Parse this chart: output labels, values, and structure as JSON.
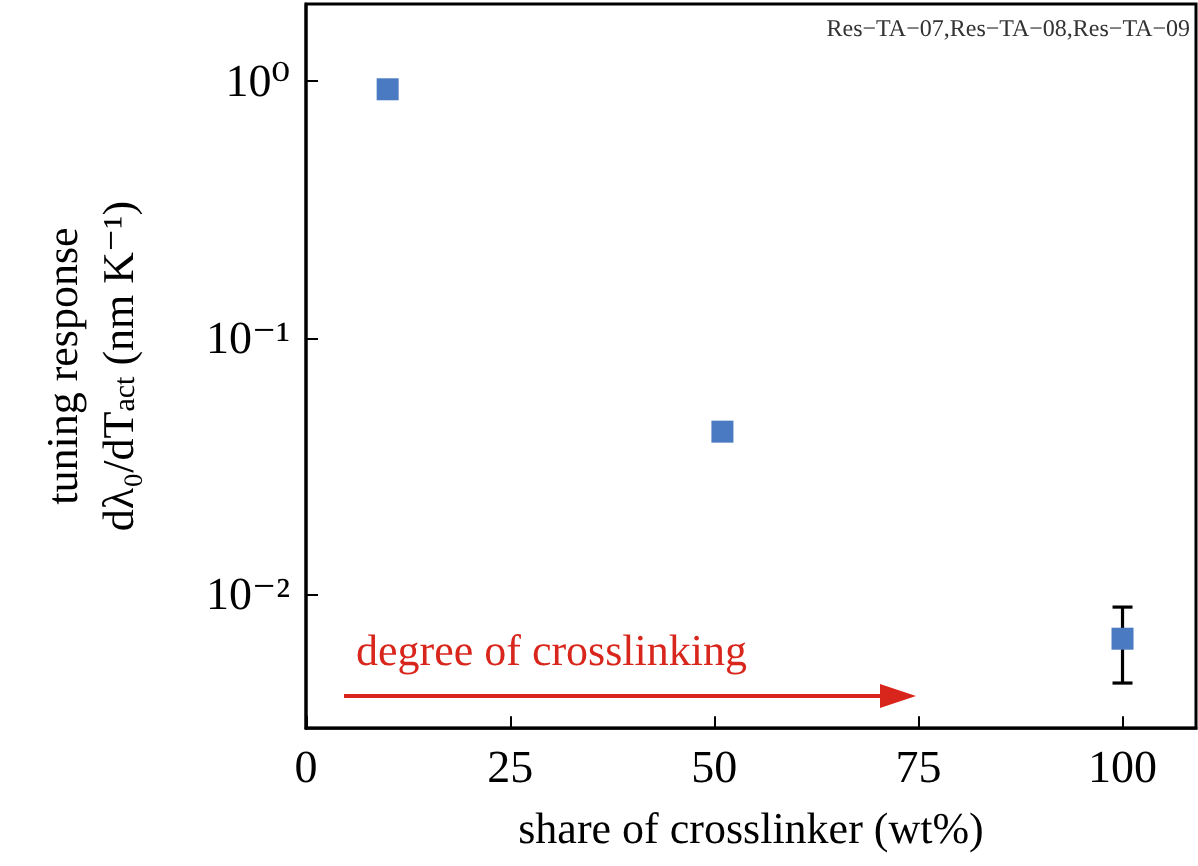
{
  "chart_data": {
    "type": "scatter",
    "xlabel": "share of crosslinker (wt%)",
    "ylabel": "tuning response\ndλ₀/dT$_{act}$ (nm K⁻¹)",
    "x": [
      10,
      51,
      100
    ],
    "series": [
      {
        "color": "#4a7ac2",
        "values": [
          0.93,
          0.043,
          0.0067
        ],
        "errors": [
          null,
          null,
          [
            0.0045,
            0.0089
          ]
        ]
      }
    ],
    "xlim": [
      0,
      109
    ],
    "xticks": [
      0,
      25,
      50,
      75,
      100
    ],
    "ylim": [
      0.003,
      2
    ],
    "yticks": [
      {
        "value": 1,
        "label": "10⁰"
      },
      {
        "value": 0.1,
        "label": "10⁻¹"
      },
      {
        "value": 0.01,
        "label": "10⁻²"
      }
    ],
    "log": "y",
    "marker": "square",
    "grid": false,
    "annotations": [
      "Res−TA−07,Res−TA−08,Res−TA−09",
      "degree of crosslinking"
    ]
  }
}
